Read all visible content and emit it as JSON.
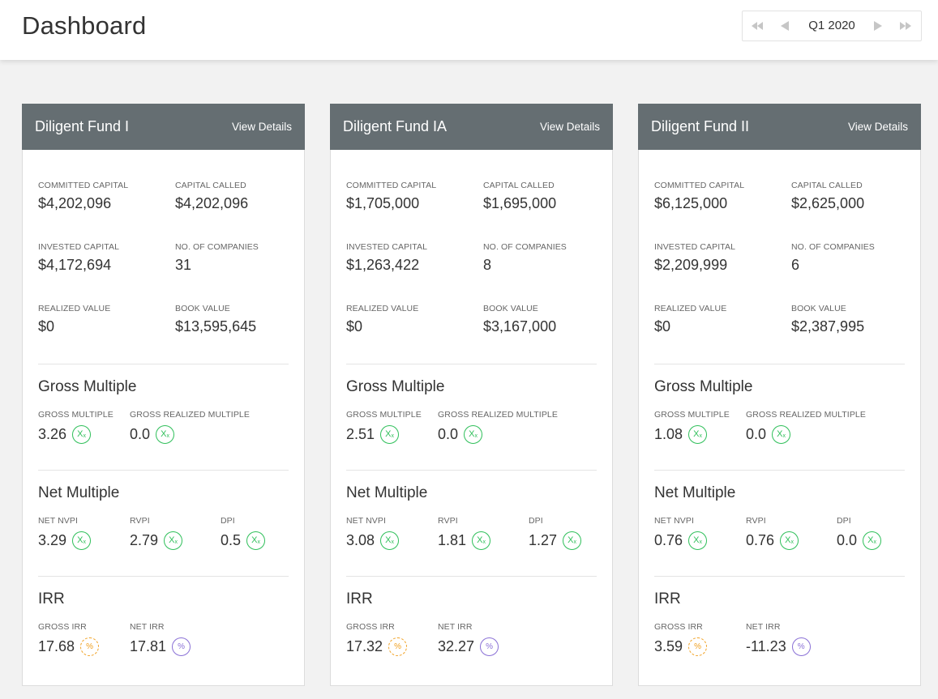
{
  "header": {
    "title": "Dashboard",
    "period": "Q1 2020"
  },
  "units": {
    "multiple_badge": "X",
    "multiple_badge_sub": "x",
    "percent_badge": "%"
  },
  "section_titles": {
    "gross": "Gross Multiple",
    "net": "Net Multiple",
    "irr": "IRR"
  },
  "labels": {
    "committed": "COMMITTED CAPITAL",
    "called": "CAPITAL CALLED",
    "invested": "INVESTED CAPITAL",
    "companies": "NO. OF COMPANIES",
    "realized": "REALIZED VALUE",
    "book": "BOOK VALUE",
    "gross_multiple": "GROSS MULTIPLE",
    "gross_realized": "GROSS REALIZED MULTIPLE",
    "net_nvpi": "NET NVPI",
    "rvpi": "RVPI",
    "dpi": "DPI",
    "gross_irr": "GROSS IRR",
    "net_irr": "NET IRR"
  },
  "funds": [
    {
      "name": "Diligent Fund I",
      "view_details": "View Details",
      "committed": "$4,202,096",
      "called": "$4,202,096",
      "invested": "$4,172,694",
      "companies": "31",
      "realized": "$0",
      "book": "$13,595,645",
      "gross_multiple": "3.26",
      "gross_realized": "0.0",
      "net_nvpi": "3.29",
      "rvpi": "2.79",
      "dpi": "0.5",
      "gross_irr": "17.68",
      "net_irr": "17.81"
    },
    {
      "name": "Diligent Fund IA",
      "view_details": "View Details",
      "committed": "$1,705,000",
      "called": "$1,695,000",
      "invested": "$1,263,422",
      "companies": "8",
      "realized": "$0",
      "book": "$3,167,000",
      "gross_multiple": "2.51",
      "gross_realized": "0.0",
      "net_nvpi": "3.08",
      "rvpi": "1.81",
      "dpi": "1.27",
      "gross_irr": "17.32",
      "net_irr": "32.27"
    },
    {
      "name": "Diligent Fund II",
      "view_details": "View Details",
      "committed": "$6,125,000",
      "called": "$2,625,000",
      "invested": "$2,209,999",
      "companies": "6",
      "realized": "$0",
      "book": "$2,387,995",
      "gross_multiple": "1.08",
      "gross_realized": "0.0",
      "net_nvpi": "0.76",
      "rvpi": "0.76",
      "dpi": "0.0",
      "gross_irr": "3.59",
      "net_irr": "-11.23"
    }
  ]
}
